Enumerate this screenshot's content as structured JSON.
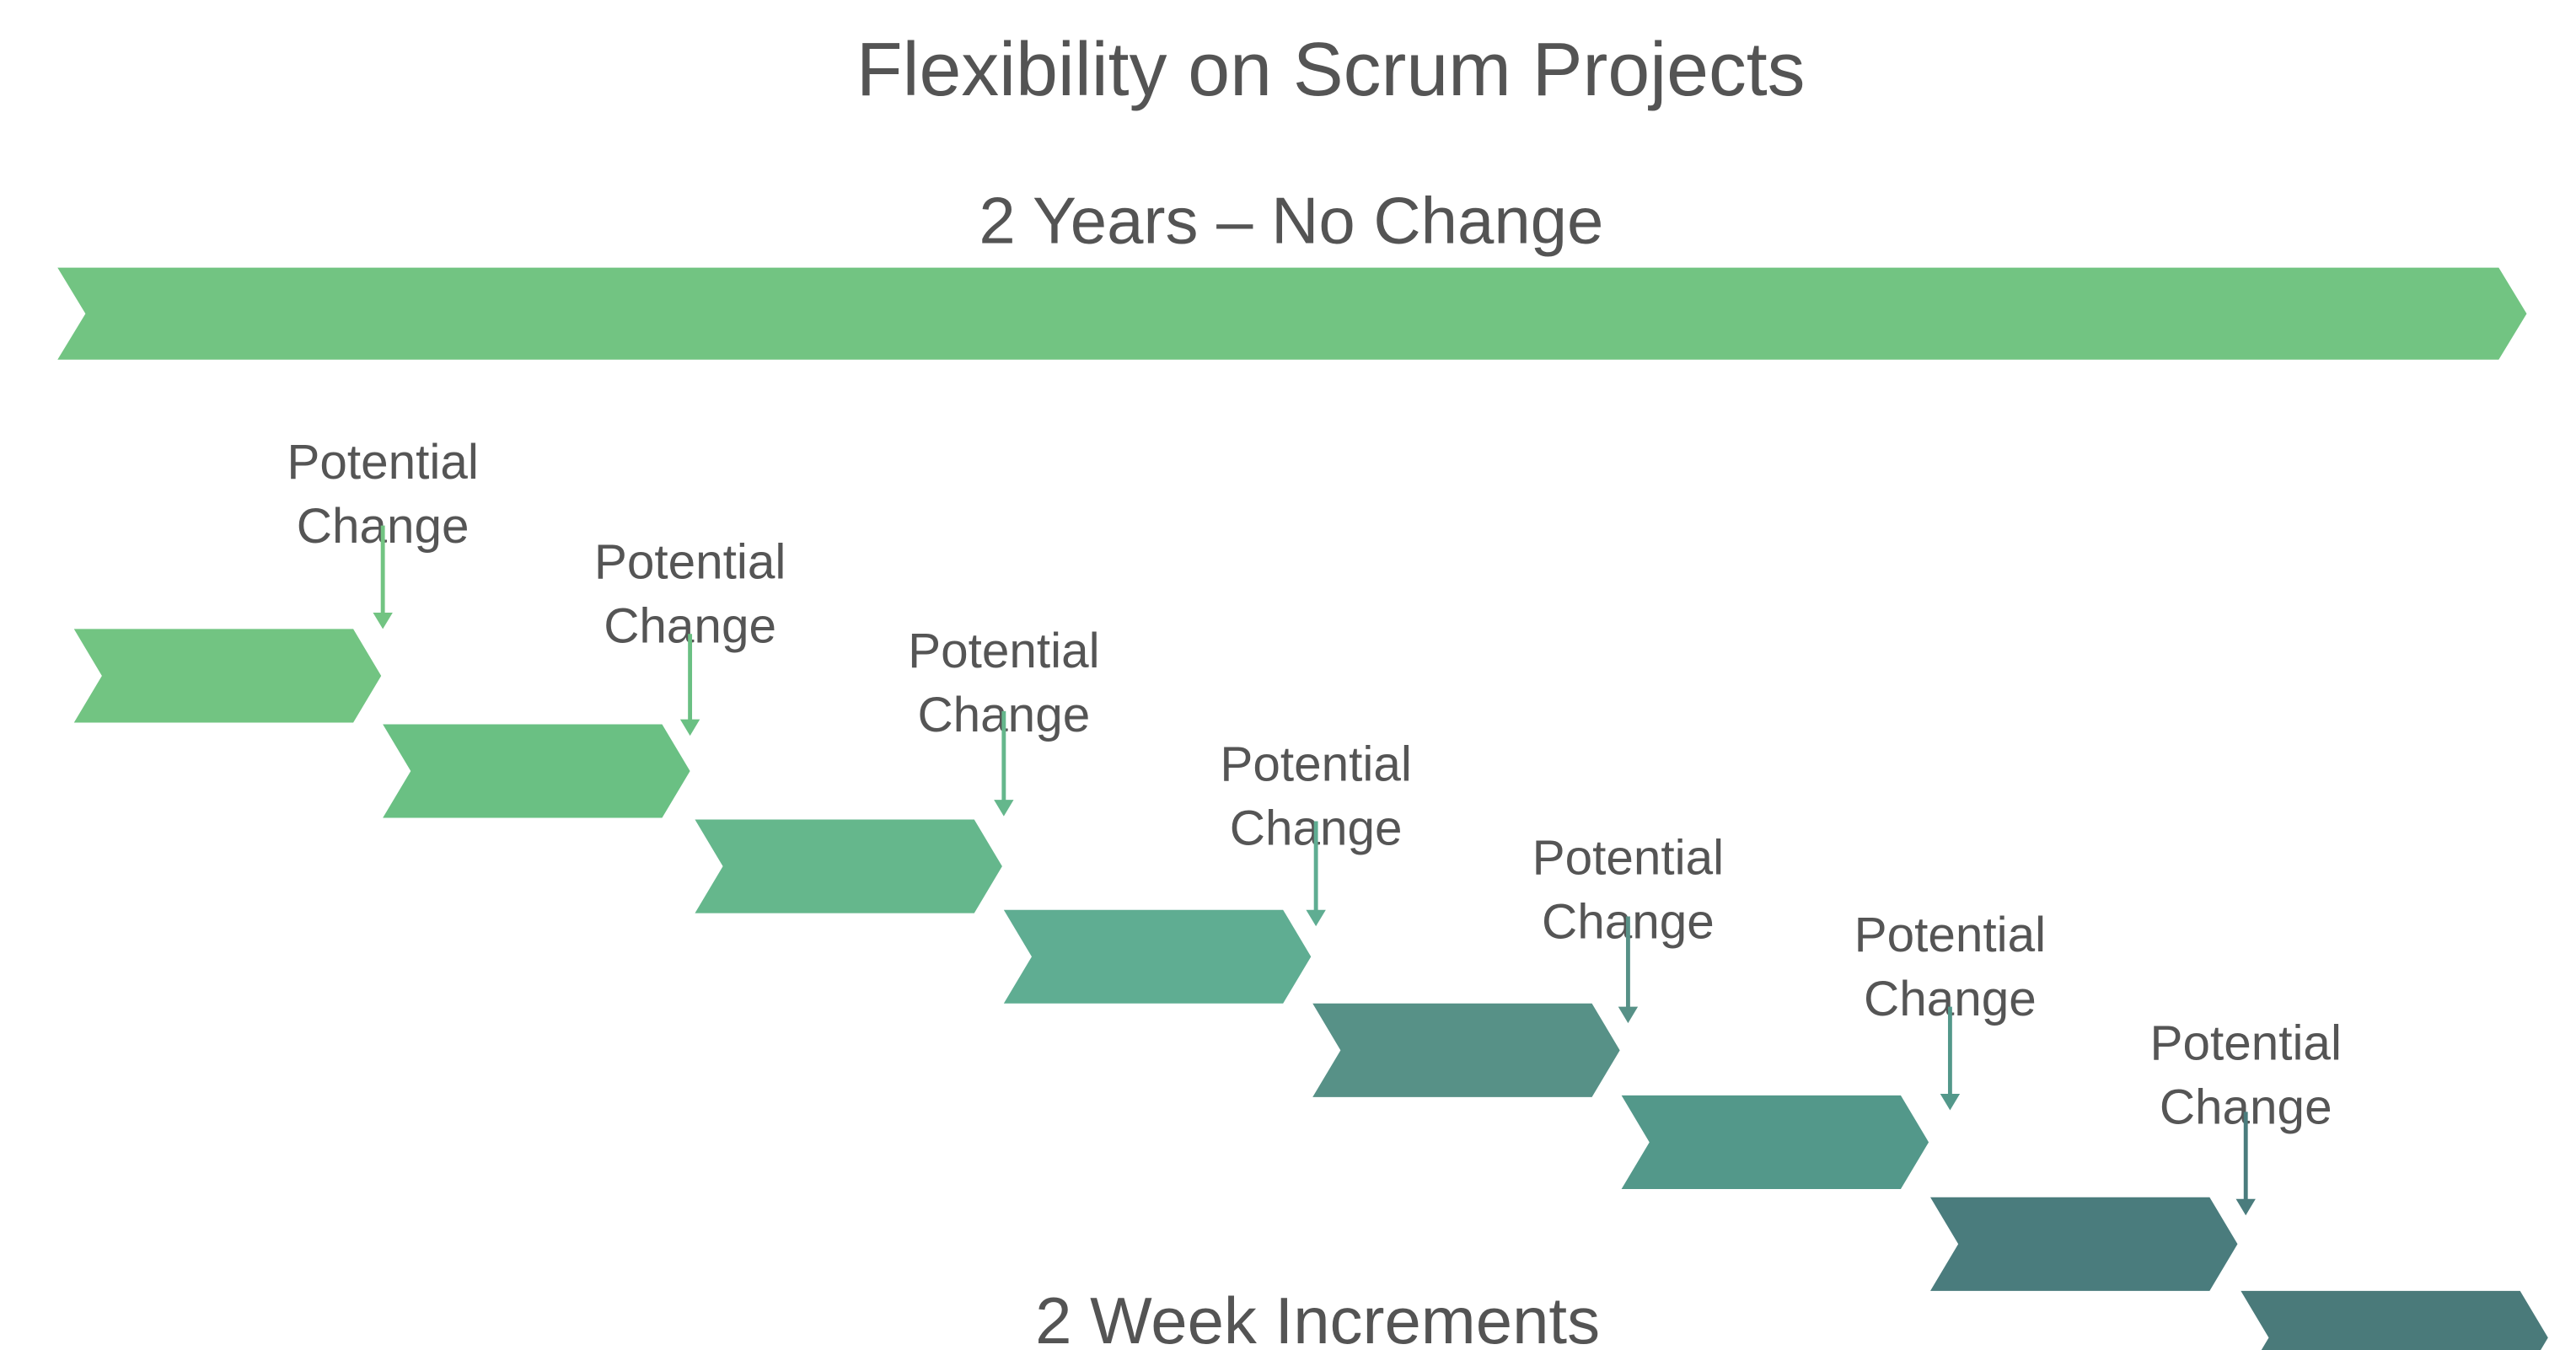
{
  "title": "Flexibility on Scrum Projects",
  "top_arrow": {
    "label": "2 Years – No Change",
    "color": "#72c482"
  },
  "bottom_label": "2 Week Increments",
  "sprints": [
    {
      "color": "#72c482",
      "change_label": [
        "Potential",
        "Change"
      ]
    },
    {
      "color": "#6ac083",
      "change_label": [
        "Potential",
        "Change"
      ]
    },
    {
      "color": "#65b78c",
      "change_label": [
        "Potential",
        "Change"
      ]
    },
    {
      "color": "#5fad92",
      "change_label": [
        "Potential",
        "Change"
      ]
    },
    {
      "color": "#579187",
      "change_label": [
        "Potential",
        "Change"
      ]
    },
    {
      "color": "#53988a",
      "change_label": [
        "Potential",
        "Change"
      ]
    },
    {
      "color": "#4a7c7d",
      "change_label": [
        "Potential",
        "Change"
      ]
    },
    {
      "color": "#4a7a7a",
      "change_label": []
    }
  ]
}
